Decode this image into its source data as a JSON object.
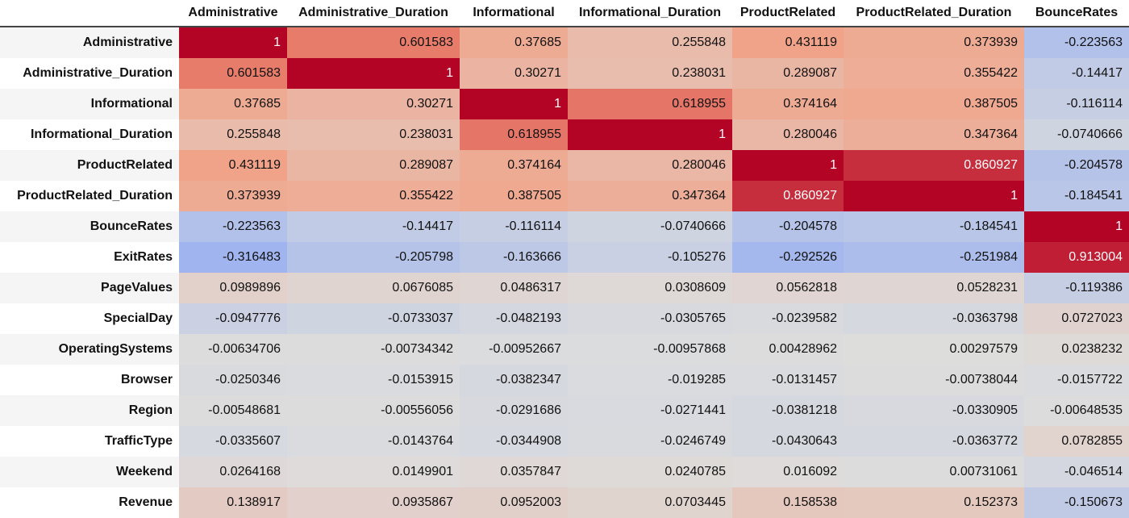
{
  "chart_data": {
    "type": "heatmap",
    "colormap": "coolwarm",
    "columns": [
      "Administrative",
      "Administrative_Duration",
      "Informational",
      "Informational_Duration",
      "ProductRelated",
      "ProductRelated_Duration",
      "BounceRates"
    ],
    "rows": [
      {
        "label": "Administrative",
        "values": [
          "1",
          "0.601583",
          "0.37685",
          "0.255848",
          "0.431119",
          "0.373939",
          "-0.223563"
        ]
      },
      {
        "label": "Administrative_Duration",
        "values": [
          "0.601583",
          "1",
          "0.30271",
          "0.238031",
          "0.289087",
          "0.355422",
          "-0.14417"
        ]
      },
      {
        "label": "Informational",
        "values": [
          "0.37685",
          "0.30271",
          "1",
          "0.618955",
          "0.374164",
          "0.387505",
          "-0.116114"
        ]
      },
      {
        "label": "Informational_Duration",
        "values": [
          "0.255848",
          "0.238031",
          "0.618955",
          "1",
          "0.280046",
          "0.347364",
          "-0.0740666"
        ]
      },
      {
        "label": "ProductRelated",
        "values": [
          "0.431119",
          "0.289087",
          "0.374164",
          "0.280046",
          "1",
          "0.860927",
          "-0.204578"
        ]
      },
      {
        "label": "ProductRelated_Duration",
        "values": [
          "0.373939",
          "0.355422",
          "0.387505",
          "0.347364",
          "0.860927",
          "1",
          "-0.184541"
        ]
      },
      {
        "label": "BounceRates",
        "values": [
          "-0.223563",
          "-0.14417",
          "-0.116114",
          "-0.0740666",
          "-0.204578",
          "-0.184541",
          "1"
        ]
      },
      {
        "label": "ExitRates",
        "values": [
          "-0.316483",
          "-0.205798",
          "-0.163666",
          "-0.105276",
          "-0.292526",
          "-0.251984",
          "0.913004"
        ]
      },
      {
        "label": "PageValues",
        "values": [
          "0.0989896",
          "0.0676085",
          "0.0486317",
          "0.0308609",
          "0.0562818",
          "0.0528231",
          "-0.119386"
        ]
      },
      {
        "label": "SpecialDay",
        "values": [
          "-0.0947776",
          "-0.0733037",
          "-0.0482193",
          "-0.0305765",
          "-0.0239582",
          "-0.0363798",
          "0.0727023"
        ]
      },
      {
        "label": "OperatingSystems",
        "values": [
          "-0.00634706",
          "-0.00734342",
          "-0.00952667",
          "-0.00957868",
          "0.00428962",
          "0.00297579",
          "0.0238232"
        ]
      },
      {
        "label": "Browser",
        "values": [
          "-0.0250346",
          "-0.0153915",
          "-0.0382347",
          "-0.019285",
          "-0.0131457",
          "-0.00738044",
          "-0.0157722"
        ]
      },
      {
        "label": "Region",
        "values": [
          "-0.00548681",
          "-0.00556056",
          "-0.0291686",
          "-0.0271441",
          "-0.0381218",
          "-0.0330905",
          "-0.00648535"
        ]
      },
      {
        "label": "TrafficType",
        "values": [
          "-0.0335607",
          "-0.0143764",
          "-0.0344908",
          "-0.0246749",
          "-0.0430643",
          "-0.0363772",
          "0.0782855"
        ]
      },
      {
        "label": "Weekend",
        "values": [
          "0.0264168",
          "0.0149901",
          "0.0357847",
          "0.0240785",
          "0.016092",
          "0.00731061",
          "-0.046514"
        ]
      },
      {
        "label": "Revenue",
        "values": [
          "0.138917",
          "0.0935867",
          "0.0952003",
          "0.0703445",
          "0.158538",
          "0.152373",
          "-0.150673"
        ]
      }
    ]
  }
}
